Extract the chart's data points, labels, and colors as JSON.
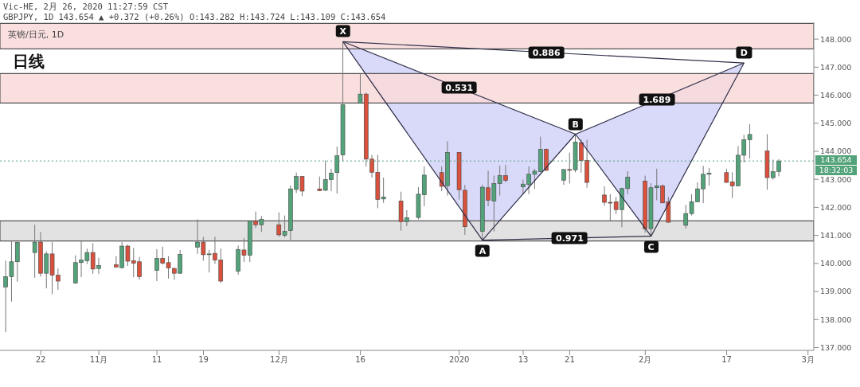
{
  "chart_data": {
    "type": "candlestick",
    "title": "英镑/日元, 1D",
    "subtitle": "日线",
    "annotations": [
      "Vic-HE, 2月 26, 2020 11:27:59 CST",
      "GBPJPY, 1D 143.654 ▲ +0.372 (+0.26%) O:143.282 H:143.724 L:143.109 C:143.654",
      "18:32:03",
      {
        "text": "X",
        "x": "2019-12-13",
        "y": 147.91
      },
      {
        "text": "A",
        "x": "2020-01-06",
        "y": 140.83
      },
      {
        "text": "B",
        "x": "2020-01-22",
        "y": 144.61
      },
      {
        "text": "C",
        "x": "2020-02-04",
        "y": 140.97
      },
      {
        "text": "D",
        "x": "2020-02-20",
        "y": 147.15
      },
      {
        "text": "0.531",
        "x": "2020-01-02",
        "y": 146.26
      },
      {
        "text": "0.886",
        "x": "2020-01-17",
        "y": 147.52
      },
      {
        "text": "1.689",
        "x": "2020-02-05",
        "y": 145.84
      },
      {
        "text": "0.971",
        "x": "2020-01-21",
        "y": 140.9
      }
    ],
    "x": [
      "2019-10-16",
      "2019-10-17",
      "2019-10-18",
      "2019-10-21",
      "2019-10-22",
      "2019-10-23",
      "2019-10-24",
      "2019-10-25",
      "2019-10-28",
      "2019-10-29",
      "2019-10-30",
      "2019-10-31",
      "2019-11-01",
      "2019-11-04",
      "2019-11-05",
      "2019-11-06",
      "2019-11-07",
      "2019-11-08",
      "2019-11-11",
      "2019-11-12",
      "2019-11-13",
      "2019-11-14",
      "2019-11-15",
      "2019-11-18",
      "2019-11-19",
      "2019-11-20",
      "2019-11-21",
      "2019-11-22",
      "2019-11-25",
      "2019-11-26",
      "2019-11-27",
      "2019-11-28",
      "2019-11-29",
      "2019-12-02",
      "2019-12-03",
      "2019-12-04",
      "2019-12-05",
      "2019-12-06",
      "2019-12-09",
      "2019-12-10",
      "2019-12-11",
      "2019-12-12",
      "2019-12-13",
      "2019-12-16",
      "2019-12-17",
      "2019-12-18",
      "2019-12-19",
      "2019-12-20",
      "2019-12-23",
      "2019-12-24",
      "2019-12-26",
      "2019-12-27",
      "2019-12-30",
      "2019-12-31",
      "2020-01-02",
      "2020-01-03",
      "2020-01-06",
      "2020-01-07",
      "2020-01-08",
      "2020-01-09",
      "2020-01-10",
      "2020-01-13",
      "2020-01-14",
      "2020-01-15",
      "2020-01-16",
      "2020-01-17",
      "2020-01-20",
      "2020-01-21",
      "2020-01-22",
      "2020-01-23",
      "2020-01-24",
      "2020-01-27",
      "2020-01-28",
      "2020-01-29",
      "2020-01-30",
      "2020-01-31",
      "2020-02-03",
      "2020-02-04",
      "2020-02-05",
      "2020-02-06",
      "2020-02-07",
      "2020-02-10",
      "2020-02-11",
      "2020-02-12",
      "2020-02-13",
      "2020-02-14",
      "2020-02-17",
      "2020-02-18",
      "2020-02-19",
      "2020-02-20",
      "2020-02-21",
      "2020-02-24",
      "2020-02-25",
      "2020-02-26"
    ],
    "ohlc": [
      [
        139.16,
        140.1,
        137.55,
        139.53
      ],
      [
        139.53,
        140.81,
        138.64,
        140.06
      ],
      [
        140.06,
        140.78,
        139.35,
        140.75
      ],
      [
        140.39,
        141.38,
        139.49,
        140.76
      ],
      [
        140.76,
        141.12,
        139.53,
        139.65
      ],
      [
        139.65,
        140.43,
        139.11,
        140.34
      ],
      [
        140.34,
        140.76,
        138.9,
        139.58
      ],
      [
        139.58,
        139.82,
        139.06,
        139.37
      ],
      [
        139.3,
        140.29,
        139.28,
        140.03
      ],
      [
        140.03,
        140.83,
        139.51,
        140.12
      ],
      [
        140.1,
        140.53,
        139.98,
        140.39
      ],
      [
        140.39,
        140.72,
        139.63,
        139.8
      ],
      [
        139.82,
        140.2,
        139.63,
        139.93
      ],
      [
        139.96,
        140.26,
        139.86,
        139.87
      ],
      [
        139.85,
        140.76,
        139.82,
        140.62
      ],
      [
        140.62,
        140.67,
        139.91,
        140.08
      ],
      [
        140.1,
        140.55,
        139.51,
        140.01
      ],
      [
        140.06,
        140.23,
        139.42,
        139.53
      ],
      [
        139.75,
        140.51,
        139.37,
        140.18
      ],
      [
        140.18,
        140.6,
        139.96,
        140.01
      ],
      [
        140.03,
        140.26,
        139.46,
        139.84
      ],
      [
        139.82,
        139.87,
        139.42,
        139.65
      ],
      [
        139.65,
        140.48,
        139.63,
        140.32
      ],
      [
        140.58,
        141.57,
        140.34,
        140.76
      ],
      [
        140.76,
        140.95,
        140.1,
        140.31
      ],
      [
        140.32,
        140.48,
        139.68,
        140.34
      ],
      [
        140.36,
        140.95,
        139.99,
        140.12
      ],
      [
        140.12,
        140.53,
        139.3,
        139.37
      ],
      [
        139.72,
        140.64,
        139.6,
        140.5
      ],
      [
        140.48,
        140.91,
        140.05,
        140.29
      ],
      [
        140.29,
        141.53,
        140.05,
        141.52
      ],
      [
        141.52,
        141.85,
        141.26,
        141.38
      ],
      [
        141.38,
        141.69,
        141.12,
        141.57
      ],
      [
        141.38,
        141.82,
        140.95,
        141.02
      ],
      [
        141.0,
        141.71,
        140.93,
        141.14
      ],
      [
        141.17,
        142.78,
        140.83,
        142.66
      ],
      [
        142.64,
        143.24,
        142.51,
        143.1
      ],
      [
        143.1,
        143.12,
        142.4,
        142.58
      ],
      [
        142.66,
        143.1,
        142.58,
        142.59
      ],
      [
        142.61,
        143.67,
        142.58,
        142.99
      ],
      [
        142.99,
        143.38,
        142.58,
        143.22
      ],
      [
        143.24,
        144.17,
        142.49,
        143.84
      ],
      [
        143.87,
        147.91,
        143.65,
        145.66
      ],
      [
        145.71,
        146.77,
        145.7,
        146.04
      ],
      [
        146.04,
        146.09,
        143.46,
        143.72
      ],
      [
        143.72,
        143.87,
        143.06,
        143.25
      ],
      [
        143.25,
        143.87,
        141.97,
        142.28
      ],
      [
        142.3,
        143.06,
        142.16,
        142.37
      ],
      [
        142.23,
        142.56,
        141.17,
        141.49
      ],
      [
        141.49,
        141.9,
        141.33,
        141.63
      ],
      [
        141.64,
        142.72,
        141.57,
        142.47
      ],
      [
        142.45,
        143.46,
        142.04,
        143.15
      ],
      [
        143.24,
        143.46,
        142.58,
        142.75
      ],
      [
        142.77,
        144.36,
        142.42,
        143.96
      ],
      [
        143.96,
        143.97,
        142.28,
        142.63
      ],
      [
        142.61,
        142.8,
        141.02,
        141.31
      ],
      [
        141.14,
        142.8,
        140.83,
        142.72
      ],
      [
        142.7,
        143.3,
        142.04,
        142.25
      ],
      [
        142.23,
        143.13,
        141.14,
        142.85
      ],
      [
        142.85,
        143.49,
        142.42,
        143.13
      ],
      [
        143.13,
        143.51,
        142.89,
        142.96
      ],
      [
        142.73,
        142.99,
        142.47,
        142.83
      ],
      [
        142.82,
        143.46,
        142.47,
        143.18
      ],
      [
        143.18,
        143.38,
        142.66,
        143.29
      ],
      [
        143.27,
        144.52,
        143.25,
        144.07
      ],
      [
        144.07,
        144.1,
        143.3,
        143.32
      ],
      [
        142.97,
        143.36,
        142.8,
        143.35
      ],
      [
        143.35,
        143.95,
        142.85,
        143.33
      ],
      [
        143.34,
        144.61,
        143.25,
        144.33
      ],
      [
        144.31,
        144.42,
        143.24,
        143.67
      ],
      [
        143.68,
        144.41,
        142.7,
        142.89
      ],
      [
        142.44,
        142.75,
        142.06,
        142.18
      ],
      [
        142.18,
        142.47,
        141.52,
        142.17
      ],
      [
        142.2,
        142.37,
        141.76,
        141.92
      ],
      [
        141.92,
        142.7,
        141.29,
        142.67
      ],
      [
        142.67,
        143.29,
        142.47,
        143.08
      ],
      [
        142.94,
        143.13,
        141.1,
        141.24
      ],
      [
        141.24,
        142.86,
        140.97,
        142.7
      ],
      [
        142.7,
        143.38,
        142.25,
        142.77
      ],
      [
        142.77,
        142.82,
        142.14,
        142.16
      ],
      [
        142.2,
        142.37,
        141.45,
        141.47
      ],
      [
        141.36,
        142.09,
        141.24,
        141.78
      ],
      [
        141.78,
        142.47,
        141.71,
        142.2
      ],
      [
        142.2,
        142.89,
        142.18,
        142.66
      ],
      [
        142.66,
        143.48,
        142.15,
        143.18
      ],
      [
        143.18,
        143.41,
        142.78,
        143.22
      ],
      [
        143.24,
        143.38,
        142.88,
        142.89
      ],
      [
        142.91,
        143.25,
        142.33,
        142.77
      ],
      [
        142.77,
        144.19,
        142.75,
        143.86
      ],
      [
        143.86,
        144.59,
        143.6,
        144.41
      ],
      [
        144.41,
        144.97,
        143.74,
        144.6
      ],
      [
        144.01,
        144.61,
        142.63,
        143.06
      ],
      [
        143.06,
        143.7,
        142.99,
        143.27
      ],
      [
        143.282,
        143.724,
        143.109,
        143.654
      ]
    ],
    "series": [
      {
        "type": "line",
        "color": "#2e2e48",
        "x": [
          "2019-12-13",
          "2020-01-06",
          "2020-01-22",
          "2020-02-04",
          "2020-02-20"
        ],
        "values": [
          147.91,
          140.83,
          144.61,
          140.97,
          147.15
        ]
      },
      {
        "type": "line",
        "color": "#2e2e48",
        "x": [
          "2019-12-13",
          "2020-02-20"
        ],
        "values": [
          147.91,
          147.15
        ]
      },
      {
        "type": "line",
        "color": "#2e2e48",
        "x": [
          "2020-01-06",
          "2020-02-04"
        ],
        "values": [
          140.83,
          140.97
        ]
      },
      {
        "type": "line",
        "color": "#2e2e48",
        "x": [
          "2019-12-13",
          "2020-01-22"
        ],
        "values": [
          147.91,
          144.61
        ]
      },
      {
        "type": "line",
        "color": "#2e2e48",
        "x": [
          "2020-01-22",
          "2020-02-20"
        ],
        "values": [
          144.61,
          147.15
        ]
      }
    ],
    "xlim": [
      "2019-10-15",
      "2020-03-03"
    ],
    "xticks": [
      {
        "value": "2019-10-22",
        "label": "22"
      },
      {
        "value": "2019-11-01",
        "label": "11月"
      },
      {
        "value": "2019-11-11",
        "label": "11"
      },
      {
        "value": "2019-11-19",
        "label": "19"
      },
      {
        "value": "2019-12-02",
        "label": "12月"
      },
      {
        "value": "2019-12-16",
        "label": "16"
      },
      {
        "value": "2020-01-02",
        "label": "2020"
      },
      {
        "value": "2020-01-13",
        "label": "13"
      },
      {
        "value": "2020-01-21",
        "label": "21"
      },
      {
        "value": "2020-02-03",
        "label": "2月"
      },
      {
        "value": "2020-02-17",
        "label": "17"
      },
      {
        "value": "2020-03-02",
        "label": "3月"
      }
    ],
    "ylim": [
      136.9,
      148.6
    ],
    "yticks": [
      {
        "value": 137,
        "label": "137.000"
      },
      {
        "value": 138,
        "label": "138.000"
      },
      {
        "value": 139,
        "label": "139.000"
      },
      {
        "value": 140,
        "label": "140.000"
      },
      {
        "value": 141,
        "label": "141.000"
      },
      {
        "value": 142,
        "label": "142.000"
      },
      {
        "value": 143,
        "label": "143.000"
      },
      {
        "value": 144,
        "label": "144.000"
      },
      {
        "value": 145,
        "label": "145.000"
      },
      {
        "value": 146,
        "label": "146.000"
      },
      {
        "value": 147,
        "label": "147.000"
      },
      {
        "value": 148,
        "label": "148.000"
      }
    ],
    "ref_lines": [
      {
        "axis": "y",
        "value": 143.654,
        "label": "143.654",
        "color": "#53a37a",
        "line_style": "dotted"
      }
    ],
    "bands": [
      {
        "axis": "y",
        "from": 147.65,
        "to": 148.56,
        "color": "#f9d9d9"
      },
      {
        "axis": "y",
        "from": 145.72,
        "to": 146.77,
        "color": "#f9d9d9"
      },
      {
        "axis": "y",
        "from": 140.8,
        "to": 141.52,
        "color": "#dddddd"
      }
    ],
    "grid": false,
    "legend": false,
    "marker": "none",
    "line_style": "solid"
  }
}
